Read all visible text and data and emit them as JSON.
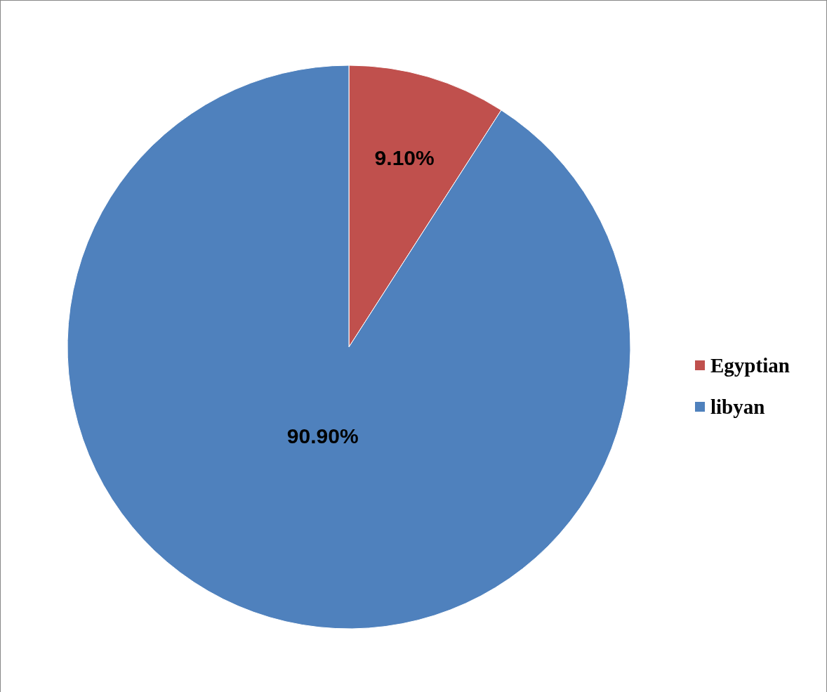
{
  "chart_data": {
    "type": "pie",
    "categories": [
      "Egyptian",
      "libyan"
    ],
    "values": [
      9.1,
      90.9
    ],
    "colors": [
      "#c0504d",
      "#4f81bd"
    ],
    "value_labels": [
      "9.10%",
      "90.90%"
    ],
    "legend": "right"
  }
}
